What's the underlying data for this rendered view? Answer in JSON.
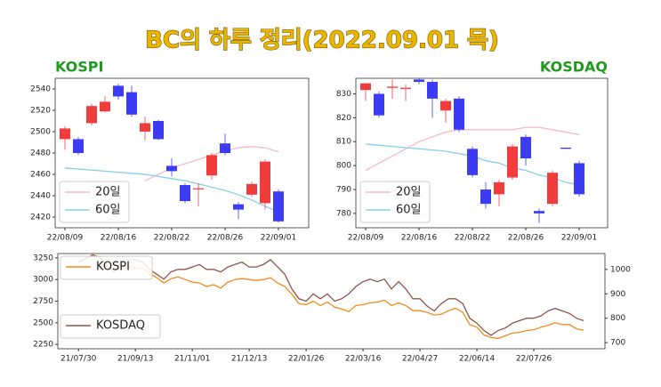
{
  "title": "BC의 하루 정리(2022.09.01 목)",
  "chart_data": [
    {
      "type": "candlestick",
      "title": "KOSPI",
      "categories": [
        "22/08/09",
        null,
        null,
        null,
        "22/08/16",
        null,
        null,
        null,
        "22/08/22",
        null,
        null,
        null,
        "22/08/26",
        null,
        null,
        null,
        "22/09/01"
      ],
      "open": [
        2493,
        2493,
        2508,
        2519,
        2543,
        2537,
        2500,
        2510,
        2468,
        2450,
        2446,
        2459,
        2489,
        2432,
        2441,
        2433,
        2444
      ],
      "high": [
        2505,
        2495,
        2526,
        2533,
        2545,
        2543,
        2514,
        2511,
        2475,
        2452,
        2452,
        2480,
        2498,
        2434,
        2453,
        2474,
        2446
      ],
      "low": [
        2483,
        2478,
        2506,
        2518,
        2530,
        2514,
        2492,
        2492,
        2458,
        2433,
        2430,
        2455,
        2478,
        2418,
        2439,
        2427,
        2415
      ],
      "close": [
        2503,
        2480,
        2524,
        2528,
        2533,
        2516,
        2508,
        2493,
        2463,
        2435,
        2447,
        2478,
        2480,
        2427,
        2451,
        2472,
        2416
      ],
      "up_color": "#f03c3c",
      "down_color": "#3c3cf5",
      "series": [
        {
          "name": "20일",
          "color": "#f7b6d2",
          "values": [
            null,
            null,
            null,
            null,
            null,
            null,
            2454,
            2460,
            2466,
            2470,
            2474,
            2478,
            2482,
            2485,
            2486,
            2485,
            2481
          ]
        },
        {
          "name": "60일",
          "color": "#87ceeb",
          "values": [
            2466,
            2465,
            2464,
            2463,
            2462,
            2461,
            2460,
            2458,
            2456,
            2454,
            2451,
            2448,
            2445,
            2441,
            2436,
            2430,
            2425
          ]
        }
      ],
      "ylim": [
        2410,
        2550
      ],
      "yticks": [
        2420,
        2440,
        2460,
        2480,
        2500,
        2520,
        2540
      ],
      "legend": "lower left"
    },
    {
      "type": "candlestick",
      "title": "KOSDAQ",
      "categories": [
        "22/08/09",
        null,
        null,
        null,
        "22/08/16",
        null,
        null,
        null,
        "22/08/22",
        null,
        null,
        null,
        "22/08/26",
        null,
        null,
        null,
        "22/09/01"
      ],
      "open": [
        831.6,
        830,
        832.5,
        832,
        836,
        835,
        823,
        828,
        807,
        790,
        788,
        795,
        812,
        781,
        784,
        807.5,
        801
      ],
      "high": [
        834.5,
        831,
        836,
        834,
        836.5,
        836,
        828,
        829,
        808,
        793,
        794,
        809,
        813,
        782,
        798,
        807.5,
        802
      ],
      "low": [
        827,
        820,
        828,
        827,
        834,
        820,
        818,
        814,
        795,
        782,
        783,
        794,
        800,
        776,
        783,
        807,
        787
      ],
      "close": [
        834.4,
        821,
        833,
        832.5,
        835,
        828,
        827,
        815,
        796,
        784,
        793,
        808,
        803,
        780,
        797,
        807,
        788
      ],
      "up_color": "#f03c3c",
      "down_color": "#3c3cf5",
      "series": [
        {
          "name": "20일",
          "color": "#f7b6d2",
          "values": [
            798,
            801,
            804,
            807,
            810,
            812,
            814,
            815,
            815,
            815,
            815,
            815,
            816,
            816,
            815,
            814,
            813
          ]
        },
        {
          "name": "60일",
          "color": "#87ceeb",
          "values": [
            809,
            808.5,
            808,
            807.5,
            807,
            806.5,
            806,
            805,
            804,
            802,
            801,
            799,
            798,
            796,
            795,
            793,
            792
          ]
        }
      ],
      "ylim": [
        774,
        836.5
      ],
      "yticks": [
        780,
        790,
        800,
        810,
        820,
        830
      ],
      "legend": "lower left"
    },
    {
      "type": "line",
      "xlim": [
        -2.9,
        74
      ],
      "xticks": [
        {
          "value": 0,
          "label": "21/07/30"
        },
        {
          "value": 8,
          "label": "21/09/13"
        },
        {
          "value": 16,
          "label": "21/11/01"
        },
        {
          "value": 24,
          "label": "21/12/13"
        },
        {
          "value": 32,
          "label": "22/01/26"
        },
        {
          "value": 40,
          "label": "22/03/16"
        },
        {
          "value": 48,
          "label": "22/04/27"
        },
        {
          "value": 56,
          "label": "22/06/14"
        },
        {
          "value": 64,
          "label": "22/07/26"
        }
      ],
      "ylim": [
        2200,
        3300
      ],
      "yticks": [
        2250,
        2500,
        2750,
        3000,
        3250
      ],
      "y2lim": [
        675,
        1065
      ],
      "y2ticks": [
        700,
        800,
        900,
        1000
      ],
      "series": [
        {
          "name": "KOSPI",
          "color": "#f28a1c",
          "legend": "upper left",
          "values": [
            3203,
            3240,
            3270,
            3260,
            3170,
            3090,
            3140,
            3150,
            3130,
            3130,
            3070,
            3020,
            2960,
            3010,
            3030,
            3000,
            2970,
            2960,
            2920,
            2940,
            2900,
            2970,
            3000,
            3010,
            3000,
            2990,
            3000,
            3020,
            2960,
            2920,
            2830,
            2720,
            2710,
            2750,
            2700,
            2740,
            2680,
            2660,
            2630,
            2700,
            2710,
            2730,
            2740,
            2760,
            2700,
            2730,
            2700,
            2640,
            2640,
            2620,
            2590,
            2600,
            2640,
            2670,
            2620,
            2480,
            2450,
            2360,
            2330,
            2320,
            2350,
            2380,
            2390,
            2410,
            2420,
            2450,
            2470,
            2500,
            2480,
            2480,
            2430,
            2415
          ]
        },
        {
          "name": "KOSDAQ",
          "color": "#8c564b",
          "axis": "y2",
          "legend": "lower left",
          "values": [
            1030,
            1045,
            1060,
            1050,
            1010,
            990,
            1030,
            1040,
            1040,
            1030,
            1000,
            980,
            960,
            990,
            1000,
            1000,
            1010,
            1020,
            1000,
            1000,
            990,
            1010,
            1020,
            1030,
            1010,
            1010,
            1020,
            1040,
            1010,
            980,
            920,
            880,
            870,
            900,
            880,
            900,
            870,
            880,
            900,
            930,
            950,
            960,
            950,
            960,
            920,
            950,
            920,
            880,
            880,
            850,
            830,
            860,
            880,
            880,
            860,
            800,
            780,
            750,
            730,
            750,
            760,
            780,
            790,
            800,
            800,
            810,
            830,
            840,
            830,
            820,
            800,
            790
          ]
        }
      ]
    }
  ]
}
